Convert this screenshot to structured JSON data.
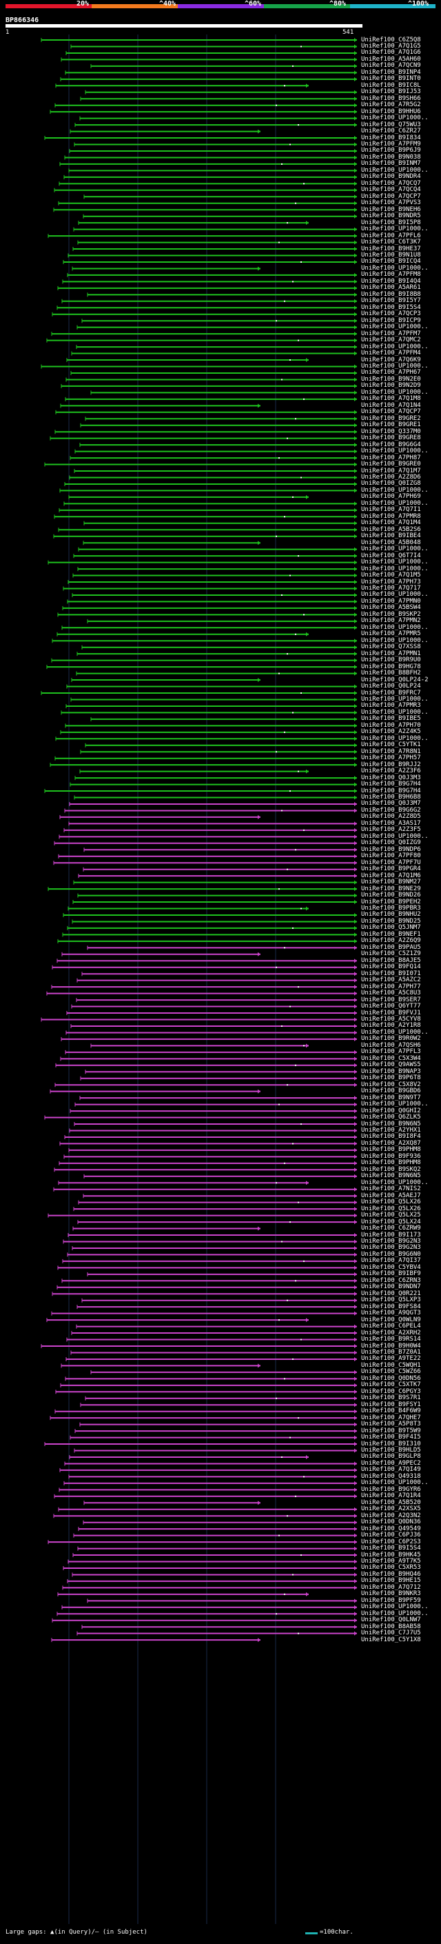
{
  "colors": {
    "scale": [
      "#e2152b",
      "#f47a1e",
      "#8a2be2",
      "#16a34a",
      "#1fb3c9"
    ],
    "hit_green": "#1ec21e",
    "hit_magenta": "#cc44cc",
    "grid": "#1a2a4a",
    "marker": "#ffffff"
  },
  "scale_labels": [
    "20%",
    "^40%",
    "^60%",
    "^80%",
    "^100%"
  ],
  "query": {
    "name": "BP866346",
    "start": "1",
    "end": "541"
  },
  "hits": [
    "UniRef100_C6Z5Q8",
    "UniRef100_A7Q1G5",
    "UniRef100_A7Q1G6",
    "UniRef100_A5AH60",
    "UniRef100_A7QCN9",
    "UniRef100_B9INP4",
    "UniRef100_B9INT0",
    "UniRef100_B9IC8L",
    "UniRef100_B9IJ53",
    "UniRef100_B9SH66",
    "UniRef100_A7R5G2",
    "UniRef100_B9HHU6",
    "UniRef100_UP1000..",
    "UniRef100_Q75WU3",
    "UniRef100_C6ZR27",
    "UniRef100_B9I834",
    "UniRef100_A7PFM9",
    "UniRef100_B9P6J9",
    "UniRef100_B9N038",
    "UniRef100_B9INM7",
    "UniRef100_UP1000..",
    "UniRef100_B9NDR4",
    "UniRef100_A7QCQ7",
    "UniRef100_A7QCQ4",
    "UniRef100_A7QCP7",
    "UniRef100_A7PVS3",
    "UniRef100_B9NEH6",
    "UniRef100_B9NDR5",
    "UniRef100_B9I5P8",
    "UniRef100_UP1000..",
    "UniRef100_A7PFL6",
    "UniRef100_C6T3K7",
    "UniRef100_B9HE37",
    "UniRef100_B9N1U8",
    "UniRef100_B9ICQ4",
    "UniRef100_UP1000..",
    "UniRef100_A7PFM8",
    "UniRef100_B9I4Q4",
    "UniRef100_A5AR61",
    "UniRef100_B9I8B8",
    "UniRef100_B9I5Y7",
    "UniRef100_B9I5S4",
    "UniRef100_A7QCP3",
    "UniRef100_B9ICP9",
    "UniRef100_UP1000..",
    "UniRef100_A7PFM7",
    "UniRef100_A7QMC2",
    "UniRef100_UP1000..",
    "UniRef100_A7PFM4",
    "UniRef100_A7Q6K9",
    "UniRef100_UP1000..",
    "UniRef100_A7PH67",
    "UniRef100_B9N2E0",
    "UniRef100_B9N2D9",
    "UniRef100_UP1000..",
    "UniRef100_A7Q1M8",
    "UniRef100_A7Q1N4",
    "UniRef100_A7QCP7",
    "UniRef100_B9GRE2",
    "UniRef100_B9GRE1",
    "UniRef100_Q337M0",
    "UniRef100_B9GRE8",
    "UniRef100_B9G6G4",
    "UniRef100_UP1000..",
    "UniRef100_A7PH87",
    "UniRef100_B9GRE0",
    "UniRef100_A7Q1M7",
    "UniRef100_A2Z8D6",
    "UniRef100_Q0IZG8",
    "UniRef100_UP1000..",
    "UniRef100_A7PH69",
    "UniRef100_UP1000..",
    "UniRef100_A7Q7I1",
    "UniRef100_A7PMR8",
    "UniRef100_A7Q1M4",
    "UniRef100_A5B2S6",
    "UniRef100_B9IBE4",
    "UniRef100_A5B048",
    "UniRef100_UP1000..",
    "UniRef100_Q6T7I4",
    "UniRef100_UP1000..",
    "UniRef100_UP1000..",
    "UniRef100_A7Q1M5",
    "UniRef100_A7PH73",
    "UniRef100_A7Q717",
    "UniRef100_UP1000..",
    "UniRef100_A7PMN0",
    "UniRef100_A5BSW4",
    "UniRef100_B9SKP2",
    "UniRef100_A7PMN2",
    "UniRef100_UP1000..",
    "UniRef100_A7PMR5",
    "UniRef100_UP1000..",
    "UniRef100_Q7XSS8",
    "UniRef100_A7PMN1",
    "UniRef100_B9R9U0",
    "UniRef100_B9HG78",
    "UniRef100_B8BFH2",
    "UniRef100_Q0LP24-2",
    "UniRef100_Q0LP24",
    "UniRef100_B9FRC7",
    "UniRef100_UP1000..",
    "UniRef100_A7PMR3",
    "UniRef100_UP1000..",
    "UniRef100_B9IBE5",
    "UniRef100_A7PH70",
    "UniRef100_A2Z4K5",
    "UniRef100_UP1000..",
    "UniRef100_C5YTK1",
    "UniRef100_A7R8N1",
    "UniRef100_A7PH57",
    "UniRef100_B9RJJ2",
    "UniRef100_A2Z3F6",
    "UniRef100_Q0J3M3",
    "UniRef100_B9G7H4",
    "UniRef100_B9G7H4",
    "UniRef100_B9H6B8",
    "UniRef100_Q0J3M7",
    "UniRef100_B9G6G2",
    "UniRef100_A2Z8D5",
    "UniRef100_A3AS17",
    "UniRef100_A2Z3F5",
    "UniRef100_UP1000..",
    "UniRef100_Q0IZG9",
    "UniRef100_B9NDP6",
    "UniRef100_A7PF80",
    "UniRef100_A7PF7U",
    "UniRef100_B9PGR4",
    "UniRef100_A7Q1M6",
    "UniRef100_B9NM27",
    "UniRef100_B9NE29",
    "UniRef100_B9ND26",
    "UniRef100_B9PEH2",
    "UniRef100_B9PBR3",
    "UniRef100_B9NHU2",
    "UniRef100_B9ND25",
    "UniRef100_Q5JNM7",
    "UniRef100_B9NEF1",
    "UniRef100_A2Z6Q9",
    "UniRef100_B9PAU5",
    "UniRef100_C5Z1Z9",
    "UniRef100_B8AJE5",
    "UniRef100_B9FQ14",
    "UniRef100_B9I071",
    "UniRef100_A5AZC2",
    "UniRef100_A7PH77",
    "UniRef100_A5C8U3",
    "UniRef100_B9SER7",
    "UniRef100_Q6YT77",
    "UniRef100_B9FVJ1",
    "UniRef100_A5CYV8",
    "UniRef100_A2Y1R8",
    "UniRef100_UP1000..",
    "UniRef100_B9R0W2",
    "UniRef100_A7QSH6",
    "UniRef100_A7PFL3",
    "UniRef100_C5X3W4",
    "UniRef100_Q9AWS5",
    "UniRef100_B9NAP3",
    "UniRef100_B9P6T8",
    "UniRef100_C5X8V2",
    "UniRef100_B9GBD6",
    "UniRef100_B9N9T7",
    "UniRef100_UP1000..",
    "UniRef100_Q0GHI2",
    "UniRef100_Q6ZLK5",
    "UniRef100_B9N6N5",
    "UniRef100_A2YHX1",
    "UniRef100_B9I8F4",
    "UniRef100_A2XQ87",
    "UniRef100_B9PHM8",
    "UniRef100_B9F936",
    "UniRef100_B9PHM8",
    "UniRef100_B9SKQ2",
    "UniRef100_B9N6N5",
    "UniRef100_UP1000..",
    "UniRef100_A7NIS2",
    "UniRef100_A5AEJ7",
    "UniRef100_Q5LX26",
    "UniRef100_Q5LX26",
    "UniRef100_Q5LX25",
    "UniRef100_Q5LX24",
    "UniRef100_C6ZRW9",
    "UniRef100_B9I173",
    "UniRef100_B9G2N3",
    "UniRef100_B9G2N3",
    "UniRef100_B9G6N0",
    "UniRef100_A7QI37",
    "UniRef100_C5YBV4",
    "UniRef100_B9IBF9",
    "UniRef100_C6ZRN3",
    "UniRef100_B9NDN7",
    "UniRef100_Q0R221",
    "UniRef100_Q5LXP3",
    "UniRef100_B9FS84",
    "UniRef100_A9QGT3",
    "UniRef100_Q0WLN9",
    "UniRef100_C6PEL4",
    "UniRef100_A2XRH2",
    "UniRef100_B9RS14",
    "UniRef100_B9H0W4",
    "UniRef100_B7Z0A1",
    "UniRef100_A9TE22",
    "UniRef100_C5WQH1",
    "UniRef100_C5WZ66",
    "UniRef100_Q0DN56",
    "UniRef100_C5XTK7",
    "UniRef100_C6PGY3",
    "UniRef100_B9S7R1",
    "UniRef100_B9FSY1",
    "UniRef100_B4F6W9",
    "UniRef100_A7QHE7",
    "UniRef100_A5P8T3",
    "UniRef100_B9T5W9",
    "UniRef100_B9F4I5",
    "UniRef100_B9I310",
    "UniRef100_B9HLD5",
    "UniRef100_B9GLP8",
    "UniRef100_A9PEC2",
    "UniRef100_A7QI49",
    "UniRef100_Q49318",
    "UniRef100_UP1000..",
    "UniRef100_B9GYR6",
    "UniRef100_A7Q1R4",
    "UniRef100_A5B520",
    "UniRef100_A2XSX5",
    "UniRef100_A2Q3N2",
    "UniRef100_Q0DN36",
    "UniRef100_Q49549",
    "UniRef100_C6PJ36",
    "UniRef100_C6P2S3",
    "UniRef100_B9I5S4",
    "UniRef100_B9HK45",
    "UniRef100_A9T7K5",
    "UniRef100_C5XR53",
    "UniRef100_B9HQ46",
    "UniRef100_B9HE15",
    "UniRef100_A7Q712",
    "UniRef100_B9NKR3",
    "UniRef100_B9PF59",
    "UniRef100_UP1000..",
    "UniRef100_UP1000..",
    "UniRef100_Q0LNW7",
    "UniRef100_B8AB58",
    "UniRef100_C7J7U5",
    "UniRef100_C5Y1X8"
  ],
  "footer": {
    "gap_legend": "Large gaps: ▲(in Query)/— (in Subject)",
    "length_legend": "=100char."
  }
}
